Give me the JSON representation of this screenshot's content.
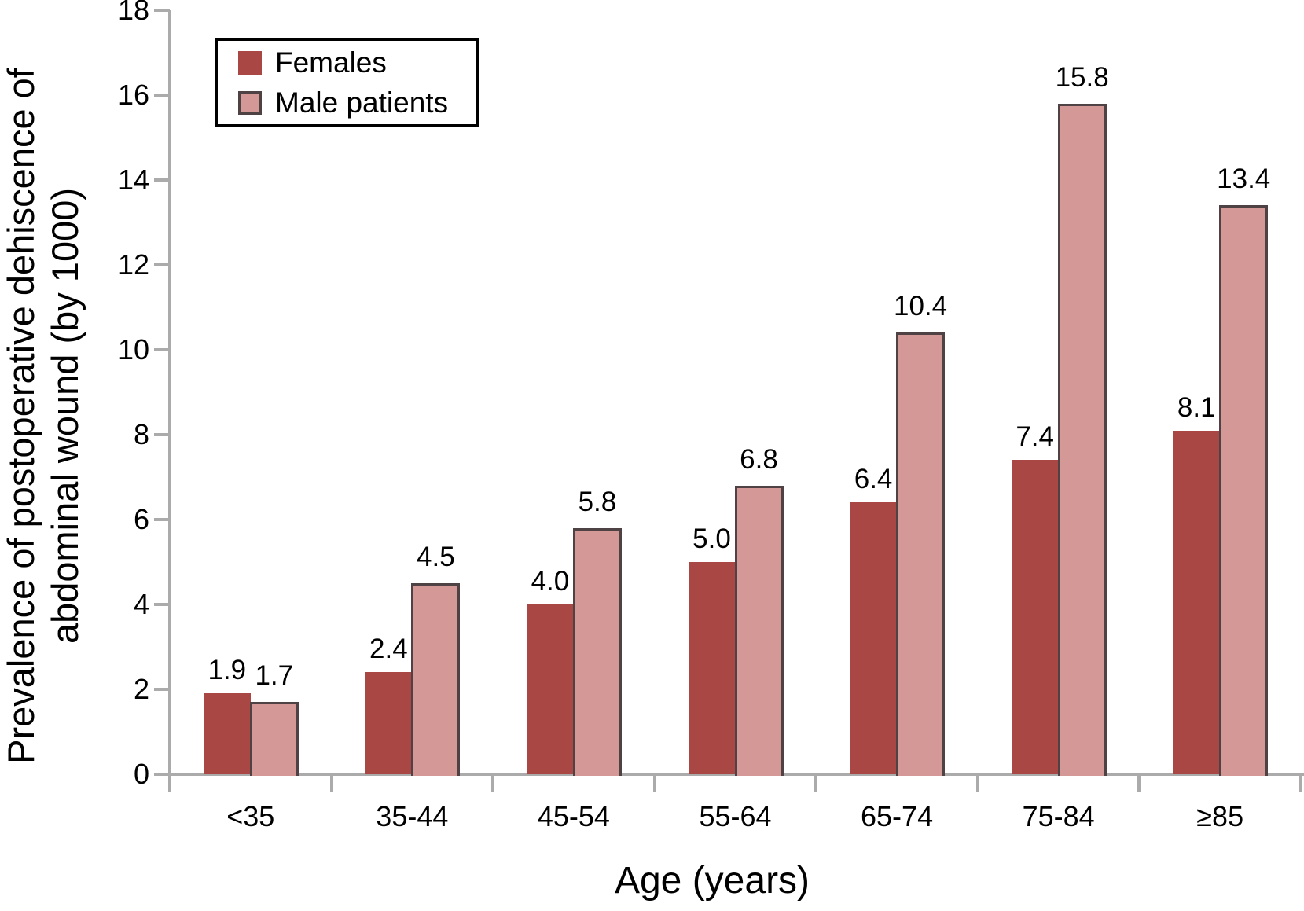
{
  "chart_data": {
    "type": "bar",
    "title": "",
    "categories": [
      "<35",
      "35-44",
      "45-54",
      "55-64",
      "65-74",
      "75-84",
      "≥85"
    ],
    "series": [
      {
        "name": "Females",
        "color": "#a94744",
        "values": [
          1.9,
          2.4,
          4.0,
          5.0,
          6.4,
          7.4,
          8.1
        ],
        "value_labels": [
          "1.9",
          "2.4",
          "4.0",
          "5.0",
          "6.4",
          "7.4",
          "8.1"
        ]
      },
      {
        "name": "Male patients",
        "color": "#d49897",
        "border_color": "#4e4245",
        "values": [
          1.7,
          4.5,
          5.8,
          6.8,
          10.4,
          15.8,
          13.4
        ],
        "value_labels": [
          "1.7",
          "4.5",
          "5.8",
          "6.8",
          "10.4",
          "15.8",
          "13.4"
        ]
      }
    ],
    "xlabel": "Age (years)",
    "ylabel": "Prevalence of postoperative dehiscence of abdominal wound (by 1000)",
    "ylabel_lines": [
      "Prevalence of postoperative dehiscence of",
      "abdominal wound (by 1000)"
    ],
    "ylim": [
      0,
      18
    ],
    "ytick_step": 2,
    "yticks": [
      0,
      2,
      4,
      6,
      8,
      10,
      12,
      14,
      16,
      18
    ],
    "grid": false,
    "legend_position": "top-left",
    "axis_color": "#ababab",
    "text_color": "#000000",
    "data_labels_shown": true
  }
}
